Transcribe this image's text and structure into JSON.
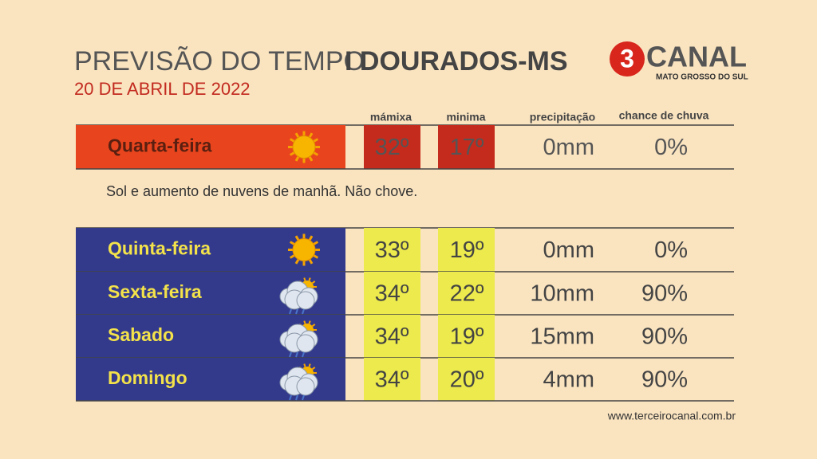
{
  "header": {
    "title_main": "PREVISÃO DO TEMPO",
    "title_place": "I DOURADOS-MS",
    "date": "20 DE ABRIL DE 2022"
  },
  "logo": {
    "number": "3",
    "name": "CANAL",
    "region": "MATO GROSSO DO SUL"
  },
  "columns": [
    "mámixa",
    "minima",
    "precipitação",
    "chance de chuva"
  ],
  "today": {
    "day": "Quarta-feira",
    "icon": "sun",
    "max": "32º",
    "min": "17º",
    "precipitation": "0mm",
    "chance": "0%",
    "note": "Sol e aumento de nuvens de manhã. Não chove."
  },
  "forecast": [
    {
      "day": "Quinta-feira",
      "icon": "sun",
      "max": "33º",
      "min": "19º",
      "precipitation": "0mm",
      "chance": "0%"
    },
    {
      "day": "Sexta-feira",
      "icon": "rain",
      "max": "34º",
      "min": "22º",
      "precipitation": "10mm",
      "chance": "90%"
    },
    {
      "day": "Sabado",
      "icon": "rain",
      "max": "34º",
      "min": "19º",
      "precipitation": "15mm",
      "chance": "90%"
    },
    {
      "day": "Domingo",
      "icon": "rain",
      "max": "34º",
      "min": "20º",
      "precipitation": "4mm",
      "chance": "90%"
    }
  ],
  "footer": {
    "url": "www.terceirocanal.com.br"
  }
}
